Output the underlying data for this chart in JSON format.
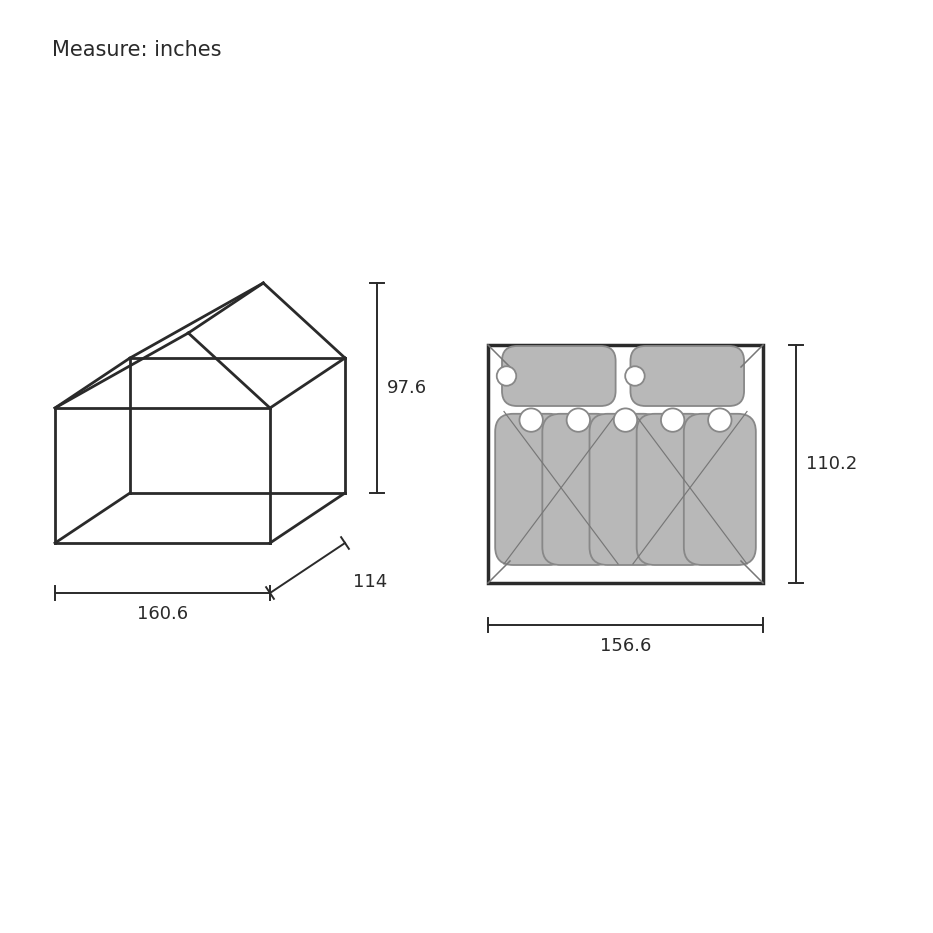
{
  "title": "Measure: inches",
  "bg_color": "#ffffff",
  "line_color": "#2a2a2a",
  "gray_fill": "#b8b8b8",
  "bag_white": "#f0f0f0",
  "dim1_height": "97.6",
  "dim1_length": "160.6",
  "dim1_depth": "114",
  "dim2_height": "110.2",
  "dim2_width": "156.6",
  "font_size_title": 15,
  "font_size_dim": 13
}
